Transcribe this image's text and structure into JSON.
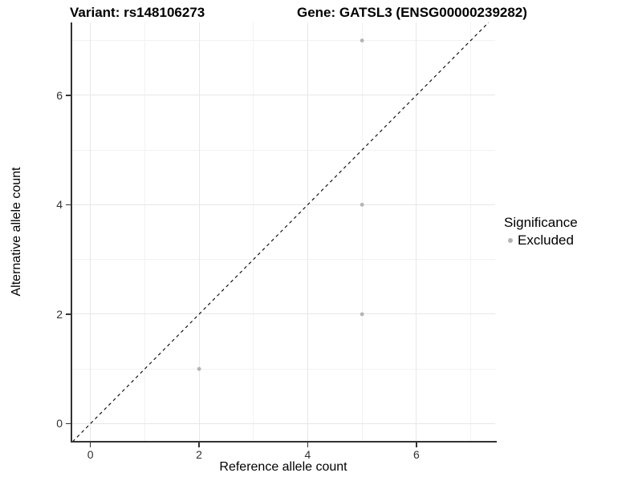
{
  "figure": {
    "title_left": "Variant: rs148106273",
    "title_right": "Gene: GATSL3 (ENSG00000239282)"
  },
  "legend": {
    "title": "Significance",
    "items": [
      {
        "label": "Excluded",
        "color": "#b3b3b3",
        "marker": "circle"
      }
    ]
  },
  "chart_data": {
    "type": "scatter",
    "title": "Variant: rs148106273 / Gene: GATSL3 (ENSG00000239282)",
    "xlabel": "Reference allele count",
    "ylabel": "Alternative allele count",
    "x_ticks": [
      0,
      2,
      4,
      6
    ],
    "y_ticks": [
      0,
      2,
      4,
      6
    ],
    "x_minor_ticks": [
      1,
      3,
      5,
      7
    ],
    "y_minor_ticks": [
      1,
      3,
      5,
      7
    ],
    "xlim": [
      -0.35,
      7.45
    ],
    "ylim": [
      -0.33,
      7.33
    ],
    "grid": true,
    "legend_position": "right",
    "series": [
      {
        "name": "Excluded",
        "color": "#b3b3b3",
        "points": [
          [
            2,
            1
          ],
          [
            5,
            2
          ],
          [
            5,
            4
          ],
          [
            5,
            7
          ]
        ]
      }
    ],
    "reference_line": {
      "type": "identity",
      "equation": "y = x",
      "style": "dashed",
      "color": "#000000"
    }
  },
  "colors": {
    "background": "#ffffff",
    "grid_major": "#e7e7e7",
    "grid_minor": "#f2f2f2",
    "axis_line": "#333333",
    "tick_label": "#303030",
    "point": "#b3b3b3",
    "reference_line": "#000000"
  }
}
